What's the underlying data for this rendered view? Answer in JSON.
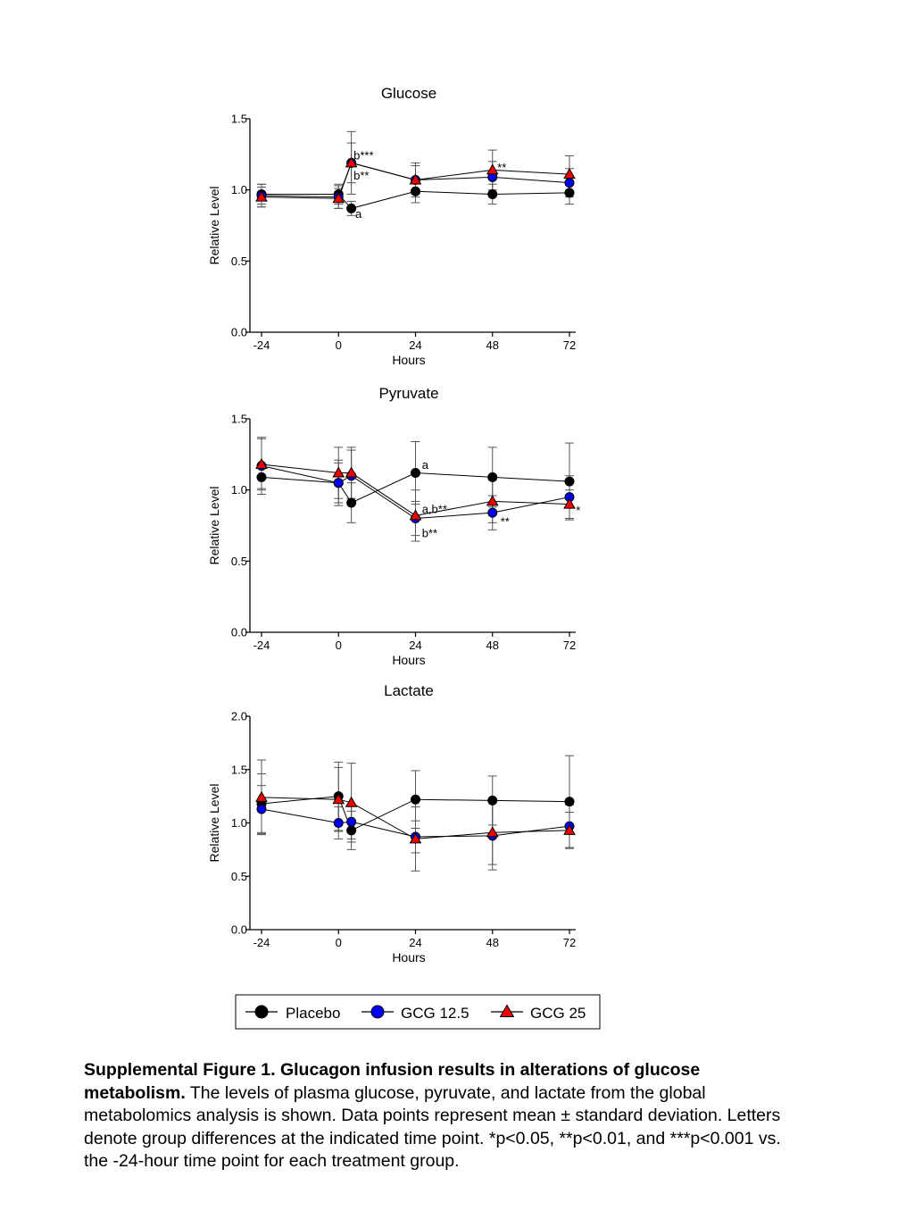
{
  "chart_data": [
    {
      "type": "line",
      "title": "Glucose",
      "xlabel": "Hours",
      "ylabel": "Relative Level",
      "x_ticks": [
        "-24",
        "0",
        "24",
        "48",
        "72"
      ],
      "y_ticks": [
        "0.0",
        "0.5",
        "1.0",
        "1.5"
      ],
      "ylim": [
        0,
        1.5
      ],
      "xlim": [
        -28,
        74
      ],
      "grid": false,
      "series": [
        {
          "name": "Placebo",
          "x": [
            -24,
            0,
            4,
            24,
            48,
            72
          ],
          "y": [
            0.97,
            0.97,
            0.87,
            0.99,
            0.97,
            0.98
          ],
          "err": [
            0.07,
            0.07,
            0.05,
            0.08,
            0.07,
            0.08
          ]
        },
        {
          "name": "GCG 12.5",
          "x": [
            -24,
            0,
            4,
            24,
            48,
            72
          ],
          "y": [
            0.96,
            0.95,
            1.19,
            1.07,
            1.09,
            1.05
          ],
          "err": [
            0.08,
            0.08,
            0.22,
            0.12,
            0.11,
            0.1
          ]
        },
        {
          "name": "GCG 25",
          "x": [
            -24,
            0,
            4,
            24,
            48,
            72
          ],
          "y": [
            0.95,
            0.94,
            1.19,
            1.07,
            1.14,
            1.11
          ],
          "err": [
            0.07,
            0.07,
            0.14,
            0.1,
            0.14,
            0.13
          ]
        }
      ],
      "annotations": [
        {
          "text": "b***",
          "x": 4.7,
          "y": 1.245
        },
        {
          "text": "b**",
          "x": 4.7,
          "y": 1.105
        },
        {
          "text": "a",
          "x": 5.2,
          "y": 0.835
        },
        {
          "text": "**",
          "x": 49.5,
          "y": 1.16
        }
      ]
    },
    {
      "type": "line",
      "title": "Pyruvate",
      "xlabel": "Hours",
      "ylabel": "Relative Level",
      "x_ticks": [
        "-24",
        "0",
        "24",
        "48",
        "72"
      ],
      "y_ticks": [
        "0.0",
        "0.5",
        "1.0",
        "1.5"
      ],
      "ylim": [
        0,
        1.5
      ],
      "xlim": [
        -28,
        74
      ],
      "grid": false,
      "series": [
        {
          "name": "Placebo",
          "x": [
            -24,
            0,
            4,
            24,
            48,
            72
          ],
          "y": [
            1.09,
            1.05,
            0.91,
            1.12,
            1.09,
            1.06
          ],
          "err": [
            0.08,
            0.16,
            0.14,
            0.22,
            0.21,
            0.27
          ]
        },
        {
          "name": "GCG 12.5",
          "x": [
            -24,
            0,
            4,
            24,
            48,
            72
          ],
          "y": [
            1.17,
            1.05,
            1.1,
            0.8,
            0.84,
            0.95
          ],
          "err": [
            0.2,
            0.14,
            0.18,
            0.12,
            0.12,
            0.15
          ]
        },
        {
          "name": "GCG 25",
          "x": [
            -24,
            0,
            4,
            24,
            48,
            72
          ],
          "y": [
            1.18,
            1.12,
            1.12,
            0.82,
            0.92,
            0.9
          ],
          "err": [
            0.18,
            0.18,
            0.18,
            0.18,
            0.15,
            0.1
          ]
        }
      ],
      "annotations": [
        {
          "text": "a",
          "x": 26,
          "y": 1.18
        },
        {
          "text": "a,b**",
          "x": 26,
          "y": 0.87
        },
        {
          "text": "b**",
          "x": 26,
          "y": 0.7
        },
        {
          "text": "**",
          "x": 50.5,
          "y": 0.78
        },
        {
          "text": "*",
          "x": 74,
          "y": 0.86
        }
      ]
    },
    {
      "type": "line",
      "title": "Lactate",
      "xlabel": "Hours",
      "ylabel": "Relative Level",
      "x_ticks": [
        "-24",
        "0",
        "24",
        "48",
        "72"
      ],
      "y_ticks": [
        "0.0",
        "0.5",
        "1.0",
        "1.5",
        "2.0"
      ],
      "ylim": [
        0,
        2.0
      ],
      "xlim": [
        -28,
        74
      ],
      "grid": false,
      "series": [
        {
          "name": "Placebo",
          "x": [
            -24,
            0,
            4,
            24,
            48,
            72
          ],
          "y": [
            1.18,
            1.25,
            0.93,
            1.22,
            1.21,
            1.2
          ],
          "err": [
            0.28,
            0.32,
            0.18,
            0.27,
            0.23,
            0.43
          ]
        },
        {
          "name": "GCG 12.5",
          "x": [
            -24,
            0,
            4,
            24,
            48,
            72
          ],
          "y": [
            1.13,
            1.0,
            1.01,
            0.87,
            0.88,
            0.97
          ],
          "err": [
            0.22,
            0.15,
            0.16,
            0.15,
            0.32,
            0.2
          ]
        },
        {
          "name": "GCG 25",
          "x": [
            -24,
            0,
            4,
            24,
            48,
            72
          ],
          "y": [
            1.24,
            1.22,
            1.19,
            0.85,
            0.91,
            0.93
          ],
          "err": [
            0.35,
            0.3,
            0.37,
            0.3,
            0.3,
            0.17
          ]
        }
      ],
      "annotations": []
    }
  ],
  "legend": {
    "entries": [
      {
        "name": "Placebo",
        "marker": "circle",
        "color": "#000000"
      },
      {
        "name": "GCG 12.5",
        "marker": "circle",
        "color": "#0000ee"
      },
      {
        "name": "GCG 25",
        "marker": "triangle",
        "color": "#ee0000"
      }
    ]
  },
  "colors": {
    "Placebo": "#000000",
    "GCG 12.5": "#0000ee",
    "GCG 25": "#ee0000"
  },
  "caption": {
    "title": "Supplemental Figure 1. Glucagon infusion results in alterations of glucose metabolism.",
    "body": " The levels of plasma glucose, pyruvate, and lactate from the global metabolomics analysis is shown. Data points represent mean ± standard deviation. Letters denote group differences at the indicated time point. *p<0.05, **p<0.01, and ***p<0.001 vs. the -24-hour time point for each treatment group."
  }
}
